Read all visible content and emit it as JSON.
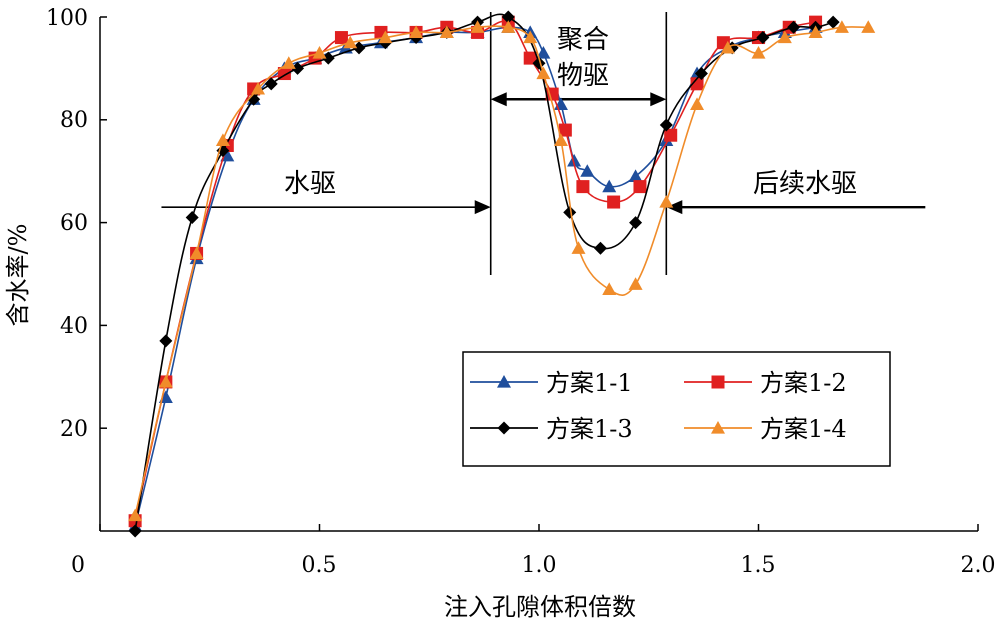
{
  "chart_data": {
    "type": "line",
    "title": "",
    "xlabel": "注入孔隙体积倍数",
    "ylabel": "含水率/%",
    "xlim": [
      0,
      2.0
    ],
    "ylim": [
      0,
      100
    ],
    "x_ticks": [
      "0",
      "0.5",
      "1.0",
      "1.5",
      "2.0"
    ],
    "y_ticks": [
      "20",
      "40",
      "60",
      "80",
      "100"
    ],
    "grid": false,
    "legend_position": "bottom-right",
    "annotations": {
      "water_flood": "水驱",
      "polymer_flood_line1": "聚合",
      "polymer_flood_line2": "物驱",
      "subsequent_water_flood": "后续水驱"
    },
    "annotation_lines": {
      "divider_x": [
        0.89,
        1.29
      ],
      "water_flood_arrow": {
        "x_from": 0.14,
        "x_to": 0.89,
        "y": 63
      },
      "polymer_arrow": {
        "x_from": 0.89,
        "x_to": 1.29,
        "y": 84
      },
      "subsequent_arrow": {
        "x_from": 1.88,
        "x_to": 1.29,
        "y": 63
      }
    },
    "series": [
      {
        "name": "方案1-1",
        "color": "#1f4e9c",
        "marker": "triangle",
        "points": [
          [
            0.08,
            1
          ],
          [
            0.15,
            26
          ],
          [
            0.22,
            53
          ],
          [
            0.29,
            73
          ],
          [
            0.35,
            84
          ],
          [
            0.42,
            90
          ],
          [
            0.49,
            92
          ],
          [
            0.56,
            94
          ],
          [
            0.64,
            95
          ],
          [
            0.72,
            96
          ],
          [
            0.79,
            97
          ],
          [
            0.86,
            97
          ],
          [
            0.93,
            98
          ],
          [
            0.98,
            97
          ],
          [
            1.01,
            93
          ],
          [
            1.05,
            83
          ],
          [
            1.08,
            72
          ],
          [
            1.11,
            70
          ],
          [
            1.16,
            67
          ],
          [
            1.22,
            69
          ],
          [
            1.29,
            76
          ],
          [
            1.36,
            89
          ],
          [
            1.43,
            94
          ],
          [
            1.5,
            96
          ],
          [
            1.56,
            97
          ],
          [
            1.63,
            98
          ]
        ]
      },
      {
        "name": "方案1-2",
        "color": "#e02020",
        "marker": "square",
        "points": [
          [
            0.08,
            2
          ],
          [
            0.15,
            29
          ],
          [
            0.22,
            54
          ],
          [
            0.29,
            75
          ],
          [
            0.35,
            86
          ],
          [
            0.42,
            89
          ],
          [
            0.49,
            92
          ],
          [
            0.55,
            96
          ],
          [
            0.64,
            97
          ],
          [
            0.72,
            97
          ],
          [
            0.79,
            98
          ],
          [
            0.86,
            97
          ],
          [
            0.93,
            99
          ],
          [
            0.98,
            92
          ],
          [
            1.03,
            85
          ],
          [
            1.06,
            78
          ],
          [
            1.1,
            67
          ],
          [
            1.17,
            64
          ],
          [
            1.23,
            67
          ],
          [
            1.3,
            77
          ],
          [
            1.36,
            87
          ],
          [
            1.42,
            95
          ],
          [
            1.5,
            96
          ],
          [
            1.57,
            98
          ],
          [
            1.63,
            99
          ]
        ]
      },
      {
        "name": "方案1-3",
        "color": "#000000",
        "marker": "diamond",
        "points": [
          [
            0.08,
            0
          ],
          [
            0.15,
            37
          ],
          [
            0.21,
            61
          ],
          [
            0.28,
            74
          ],
          [
            0.35,
            84
          ],
          [
            0.39,
            87
          ],
          [
            0.45,
            90
          ],
          [
            0.52,
            92
          ],
          [
            0.59,
            94
          ],
          [
            0.65,
            95
          ],
          [
            0.72,
            96
          ],
          [
            0.79,
            97
          ],
          [
            0.86,
            99
          ],
          [
            0.93,
            100
          ],
          [
            1.0,
            91
          ],
          [
            1.07,
            62
          ],
          [
            1.14,
            55
          ],
          [
            1.22,
            60
          ],
          [
            1.29,
            79
          ],
          [
            1.37,
            89
          ],
          [
            1.44,
            94
          ],
          [
            1.51,
            96
          ],
          [
            1.58,
            98
          ],
          [
            1.63,
            98
          ],
          [
            1.67,
            99
          ]
        ]
      },
      {
        "name": "方案1-4",
        "color": "#f08c2a",
        "marker": "triangle",
        "points": [
          [
            0.08,
            3
          ],
          [
            0.15,
            29
          ],
          [
            0.22,
            54
          ],
          [
            0.28,
            76
          ],
          [
            0.36,
            86
          ],
          [
            0.43,
            91
          ],
          [
            0.5,
            93
          ],
          [
            0.57,
            95
          ],
          [
            0.65,
            96
          ],
          [
            0.72,
            97
          ],
          [
            0.79,
            97
          ],
          [
            0.86,
            98
          ],
          [
            0.93,
            98
          ],
          [
            0.98,
            96
          ],
          [
            1.01,
            89
          ],
          [
            1.05,
            76
          ],
          [
            1.09,
            55
          ],
          [
            1.16,
            47
          ],
          [
            1.22,
            48
          ],
          [
            1.29,
            64
          ],
          [
            1.36,
            83
          ],
          [
            1.43,
            94
          ],
          [
            1.5,
            93
          ],
          [
            1.56,
            96
          ],
          [
            1.63,
            97
          ],
          [
            1.69,
            98
          ],
          [
            1.75,
            98
          ]
        ]
      }
    ]
  }
}
